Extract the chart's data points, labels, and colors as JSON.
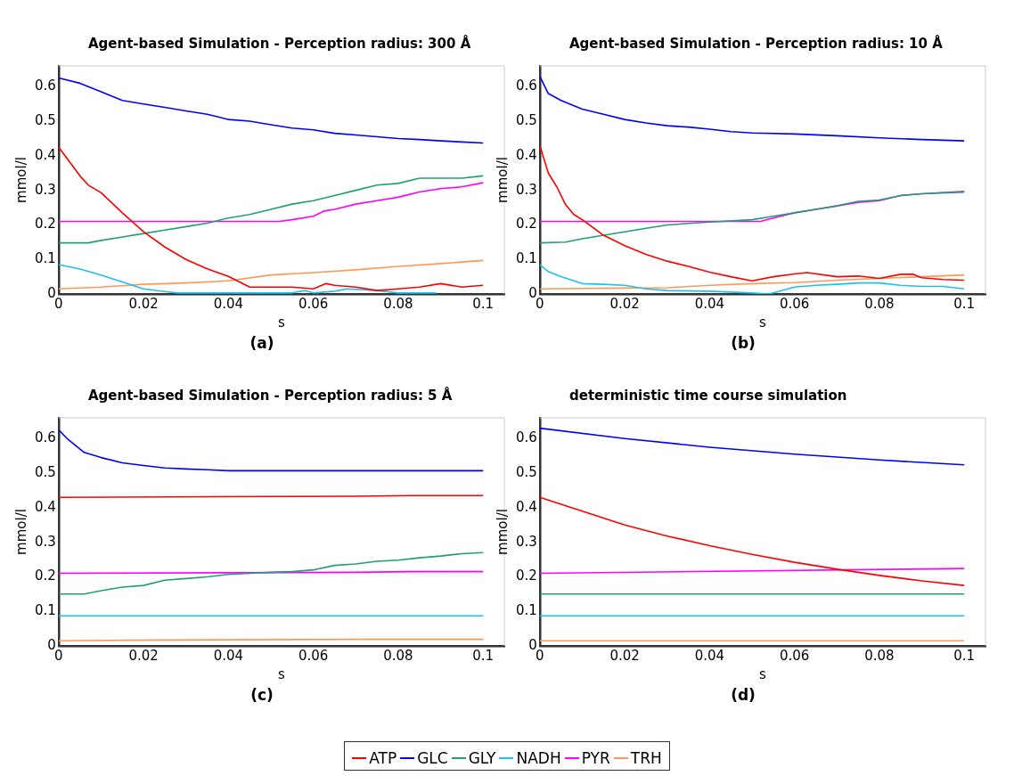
{
  "chart_data": [
    {
      "type": "line",
      "title": "Agent-based Simulation - Perception radius: 300 Å",
      "xlabel": "s",
      "ylabel": "mmol/l",
      "annotations": [
        "(a)"
      ],
      "xlim": [
        0,
        0.105
      ],
      "ylim": [
        0,
        0.66
      ],
      "xticks": [
        0,
        0.02,
        0.04,
        0.06,
        0.08,
        0.1
      ],
      "yticks": [
        0,
        0.1,
        0.2,
        0.3,
        0.4,
        0.5,
        0.6
      ],
      "grid": false,
      "legend": "bottom",
      "marker": "none",
      "line_style": "solid",
      "series": [
        {
          "name": "ATP",
          "color": "#ff0000",
          "x": [
            0,
            0.005,
            0.007,
            0.01,
            0.015,
            0.02,
            0.025,
            0.03,
            0.035,
            0.04,
            0.045,
            0.05,
            0.055,
            0.06,
            0.063,
            0.065,
            0.07,
            0.075,
            0.08,
            0.085,
            0.09,
            0.095,
            0.1
          ],
          "values": [
            0.425,
            0.342,
            0.315,
            0.293,
            0.235,
            0.18,
            0.136,
            0.1,
            0.073,
            0.051,
            0.02,
            0.02,
            0.02,
            0.015,
            0.03,
            0.025,
            0.02,
            0.01,
            0.015,
            0.02,
            0.03,
            0.02,
            0.025
          ]
        },
        {
          "name": "GLC",
          "color": "#0000ff",
          "x": [
            0,
            0.005,
            0.01,
            0.015,
            0.02,
            0.025,
            0.03,
            0.035,
            0.04,
            0.045,
            0.05,
            0.055,
            0.06,
            0.065,
            0.07,
            0.075,
            0.08,
            0.085,
            0.09,
            0.095,
            0.1
          ],
          "values": [
            0.625,
            0.61,
            0.585,
            0.56,
            0.55,
            0.54,
            0.53,
            0.52,
            0.505,
            0.5,
            0.49,
            0.48,
            0.475,
            0.465,
            0.46,
            0.455,
            0.45,
            0.447,
            0.443,
            0.44,
            0.437
          ]
        },
        {
          "name": "GLY",
          "color": "#1f9e78",
          "x": [
            0,
            0.007,
            0.01,
            0.015,
            0.02,
            0.025,
            0.03,
            0.035,
            0.04,
            0.045,
            0.05,
            0.055,
            0.06,
            0.065,
            0.07,
            0.075,
            0.08,
            0.085,
            0.09,
            0.095,
            0.1
          ],
          "values": [
            0.148,
            0.148,
            0.155,
            0.165,
            0.175,
            0.185,
            0.195,
            0.205,
            0.22,
            0.23,
            0.245,
            0.26,
            0.27,
            0.285,
            0.3,
            0.315,
            0.32,
            0.335,
            0.335,
            0.335,
            0.342
          ]
        },
        {
          "name": "NADH",
          "color": "#1ec0f0",
          "x": [
            0,
            0.005,
            0.01,
            0.015,
            0.02,
            0.025,
            0.028,
            0.055,
            0.058,
            0.06,
            0.065,
            0.068,
            0.075,
            0.08,
            0.089
          ],
          "values": [
            0.085,
            0.072,
            0.055,
            0.035,
            0.015,
            0.007,
            0.003,
            0.003,
            0.01,
            0.003,
            0.008,
            0.015,
            0.01,
            0.003,
            0.003
          ]
        },
        {
          "name": "PYR",
          "color": "#ff00ff",
          "x": [
            0,
            0.052,
            0.055,
            0.06,
            0.0625,
            0.065,
            0.07,
            0.075,
            0.08,
            0.085,
            0.09,
            0.095,
            0.1
          ],
          "values": [
            0.21,
            0.21,
            0.215,
            0.225,
            0.24,
            0.245,
            0.26,
            0.27,
            0.28,
            0.295,
            0.305,
            0.31,
            0.322
          ]
        },
        {
          "name": "TRH",
          "color": "#ff9955",
          "x": [
            0,
            0.01,
            0.02,
            0.03,
            0.04,
            0.05,
            0.06,
            0.07,
            0.08,
            0.09,
            0.1
          ],
          "values": [
            0.015,
            0.02,
            0.028,
            0.032,
            0.038,
            0.055,
            0.062,
            0.07,
            0.08,
            0.088,
            0.097
          ]
        }
      ]
    },
    {
      "type": "line",
      "title": "Agent-based Simulation - Perception radius: 10 Å",
      "xlabel": "s",
      "ylabel": "mmol/l",
      "annotations": [
        "(b)"
      ],
      "xlim": [
        0,
        0.105
      ],
      "ylim": [
        0,
        0.66
      ],
      "xticks": [
        0,
        0.02,
        0.04,
        0.06,
        0.08,
        0.1
      ],
      "yticks": [
        0,
        0.1,
        0.2,
        0.3,
        0.4,
        0.5,
        0.6
      ],
      "grid": false,
      "legend": "bottom",
      "marker": "none",
      "line_style": "solid",
      "series": [
        {
          "name": "ATP",
          "color": "#ff0000",
          "x": [
            0,
            0.002,
            0.004,
            0.006,
            0.008,
            0.01,
            0.015,
            0.02,
            0.025,
            0.03,
            0.035,
            0.04,
            0.045,
            0.05,
            0.055,
            0.06,
            0.063,
            0.07,
            0.075,
            0.08,
            0.085,
            0.088,
            0.09,
            0.095,
            0.1
          ],
          "values": [
            0.43,
            0.35,
            0.31,
            0.26,
            0.23,
            0.215,
            0.17,
            0.14,
            0.115,
            0.095,
            0.08,
            0.063,
            0.05,
            0.038,
            0.05,
            0.058,
            0.062,
            0.05,
            0.052,
            0.045,
            0.057,
            0.057,
            0.047,
            0.042,
            0.04
          ]
        },
        {
          "name": "GLC",
          "color": "#0000ff",
          "x": [
            0,
            0.002,
            0.005,
            0.01,
            0.015,
            0.02,
            0.025,
            0.03,
            0.035,
            0.04,
            0.045,
            0.05,
            0.06,
            0.07,
            0.08,
            0.09,
            0.1
          ],
          "values": [
            0.63,
            0.58,
            0.56,
            0.535,
            0.52,
            0.505,
            0.495,
            0.487,
            0.483,
            0.477,
            0.47,
            0.466,
            0.463,
            0.458,
            0.452,
            0.447,
            0.443
          ]
        },
        {
          "name": "GLY",
          "color": "#1f9e78",
          "x": [
            0,
            0.006,
            0.01,
            0.015,
            0.02,
            0.025,
            0.03,
            0.04,
            0.05,
            0.055,
            0.06,
            0.065,
            0.07,
            0.075,
            0.08,
            0.085,
            0.09,
            0.1
          ],
          "values": [
            0.148,
            0.15,
            0.16,
            0.17,
            0.18,
            0.19,
            0.2,
            0.208,
            0.215,
            0.225,
            0.235,
            0.245,
            0.255,
            0.268,
            0.272,
            0.285,
            0.29,
            0.295
          ]
        },
        {
          "name": "NADH",
          "color": "#1ec0f0",
          "x": [
            0,
            0.002,
            0.005,
            0.01,
            0.015,
            0.02,
            0.025,
            0.03,
            0.04,
            0.05,
            0.054,
            0.06,
            0.065,
            0.07,
            0.075,
            0.08,
            0.085,
            0.09,
            0.095,
            0.1
          ],
          "values": [
            0.085,
            0.065,
            0.05,
            0.03,
            0.028,
            0.025,
            0.015,
            0.01,
            0.008,
            0.003,
            0,
            0.02,
            0.025,
            0.028,
            0.032,
            0.032,
            0.025,
            0.022,
            0.022,
            0.015
          ]
        },
        {
          "name": "PYR",
          "color": "#ff00ff",
          "x": [
            0,
            0.052,
            0.055,
            0.06,
            0.065,
            0.07,
            0.075,
            0.08,
            0.085,
            0.09,
            0.1
          ],
          "values": [
            0.21,
            0.21,
            0.22,
            0.235,
            0.245,
            0.255,
            0.265,
            0.27,
            0.285,
            0.29,
            0.297
          ]
        },
        {
          "name": "TRH",
          "color": "#ff9955",
          "x": [
            0,
            0.02,
            0.03,
            0.04,
            0.05,
            0.06,
            0.07,
            0.08,
            0.09,
            0.1
          ],
          "values": [
            0.015,
            0.017,
            0.018,
            0.025,
            0.03,
            0.033,
            0.04,
            0.045,
            0.05,
            0.055
          ]
        }
      ]
    },
    {
      "type": "line",
      "title": "Agent-based Simulation - Perception radius: 5 Å",
      "xlabel": "s",
      "ylabel": "mmol/l",
      "annotations": [
        "(c)"
      ],
      "xlim": [
        0,
        0.105
      ],
      "ylim": [
        0,
        0.66
      ],
      "xticks": [
        0,
        0.02,
        0.04,
        0.06,
        0.08,
        0.1
      ],
      "yticks": [
        0,
        0.1,
        0.2,
        0.3,
        0.4,
        0.5,
        0.6
      ],
      "grid": false,
      "legend": "bottom",
      "marker": "none",
      "line_style": "solid",
      "series": [
        {
          "name": "ATP",
          "color": "#ff0000",
          "x": [
            0,
            0.07,
            0.083,
            0.1
          ],
          "values": [
            0.43,
            0.433,
            0.435,
            0.435
          ]
        },
        {
          "name": "GLC",
          "color": "#0000ff",
          "x": [
            0,
            0.002,
            0.004,
            0.006,
            0.01,
            0.015,
            0.02,
            0.025,
            0.03,
            0.035,
            0.04,
            0.1
          ],
          "values": [
            0.625,
            0.6,
            0.58,
            0.56,
            0.545,
            0.53,
            0.522,
            0.515,
            0.512,
            0.51,
            0.507,
            0.507
          ]
        },
        {
          "name": "GLY",
          "color": "#1f9e78",
          "x": [
            0,
            0.006,
            0.01,
            0.015,
            0.02,
            0.025,
            0.03,
            0.035,
            0.04,
            0.045,
            0.05,
            0.055,
            0.06,
            0.065,
            0.07,
            0.075,
            0.08,
            0.085,
            0.09,
            0.095,
            0.1
          ],
          "values": [
            0.15,
            0.15,
            0.16,
            0.17,
            0.175,
            0.19,
            0.195,
            0.2,
            0.207,
            0.21,
            0.213,
            0.215,
            0.22,
            0.233,
            0.237,
            0.245,
            0.248,
            0.255,
            0.26,
            0.267,
            0.27
          ]
        },
        {
          "name": "NADH",
          "color": "#1ec0f0",
          "x": [
            0,
            0.1
          ],
          "values": [
            0.087,
            0.087
          ]
        },
        {
          "name": "PYR",
          "color": "#ff00ff",
          "x": [
            0,
            0.07,
            0.083,
            0.1
          ],
          "values": [
            0.21,
            0.213,
            0.215,
            0.215
          ]
        },
        {
          "name": "TRH",
          "color": "#ff9955",
          "x": [
            0,
            0.023,
            0.072,
            0.1
          ],
          "values": [
            0.015,
            0.017,
            0.019,
            0.019
          ]
        }
      ]
    },
    {
      "type": "line",
      "title": "deterministic time course simulation",
      "xlabel": "s",
      "ylabel": "mmol/l",
      "annotations": [
        "(d)"
      ],
      "xlim": [
        0,
        0.105
      ],
      "ylim": [
        0,
        0.66
      ],
      "xticks": [
        0,
        0.02,
        0.04,
        0.06,
        0.08,
        0.1
      ],
      "yticks": [
        0,
        0.1,
        0.2,
        0.3,
        0.4,
        0.5,
        0.6
      ],
      "grid": false,
      "legend": "bottom",
      "marker": "none",
      "line_style": "solid",
      "series": [
        {
          "name": "ATP",
          "color": "#ff0000",
          "x": [
            0,
            0.01,
            0.02,
            0.03,
            0.04,
            0.05,
            0.06,
            0.07,
            0.08,
            0.09,
            0.1
          ],
          "values": [
            0.43,
            0.39,
            0.35,
            0.318,
            0.29,
            0.265,
            0.242,
            0.222,
            0.204,
            0.188,
            0.175
          ]
        },
        {
          "name": "GLC",
          "color": "#0000ff",
          "x": [
            0,
            0.02,
            0.04,
            0.06,
            0.08,
            0.1
          ],
          "values": [
            0.63,
            0.6,
            0.575,
            0.555,
            0.538,
            0.524
          ]
        },
        {
          "name": "GLY",
          "color": "#1f9e78",
          "x": [
            0,
            0.1
          ],
          "values": [
            0.15,
            0.15
          ]
        },
        {
          "name": "NADH",
          "color": "#1ec0f0",
          "x": [
            0,
            0.1
          ],
          "values": [
            0.087,
            0.087
          ]
        },
        {
          "name": "PYR",
          "color": "#ff00ff",
          "x": [
            0,
            0.1
          ],
          "values": [
            0.21,
            0.224
          ]
        },
        {
          "name": "TRH",
          "color": "#ff9955",
          "x": [
            0,
            0.1
          ],
          "values": [
            0.015,
            0.015
          ]
        }
      ]
    }
  ]
}
